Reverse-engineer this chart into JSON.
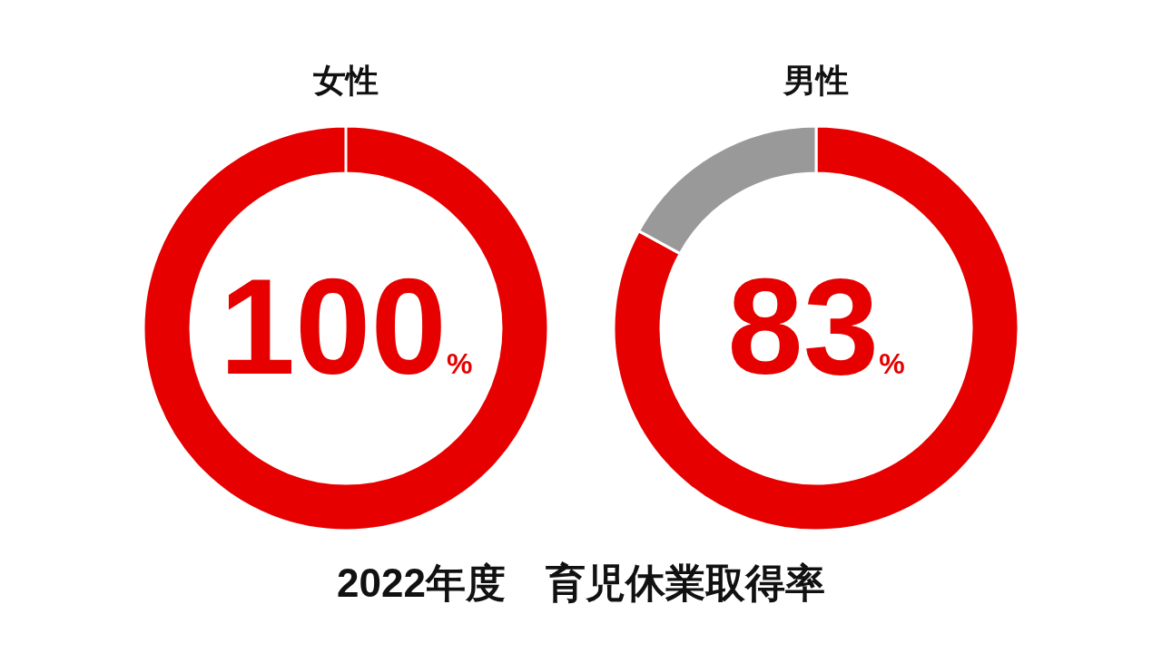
{
  "chart_data": [
    {
      "type": "donut",
      "title": "女性",
      "categories": [
        null
      ],
      "values": [
        100
      ],
      "colors": [
        "#e60000"
      ],
      "value_labels": [
        "100%"
      ],
      "annotations": [
        "2022年度　育児休業取得率"
      ]
    },
    {
      "type": "donut",
      "title": "男性",
      "categories": [
        null,
        null
      ],
      "values": [
        83,
        17
      ],
      "colors": [
        "#e60000",
        "#999999"
      ],
      "value_labels": [
        "83%",
        null
      ]
    }
  ]
}
